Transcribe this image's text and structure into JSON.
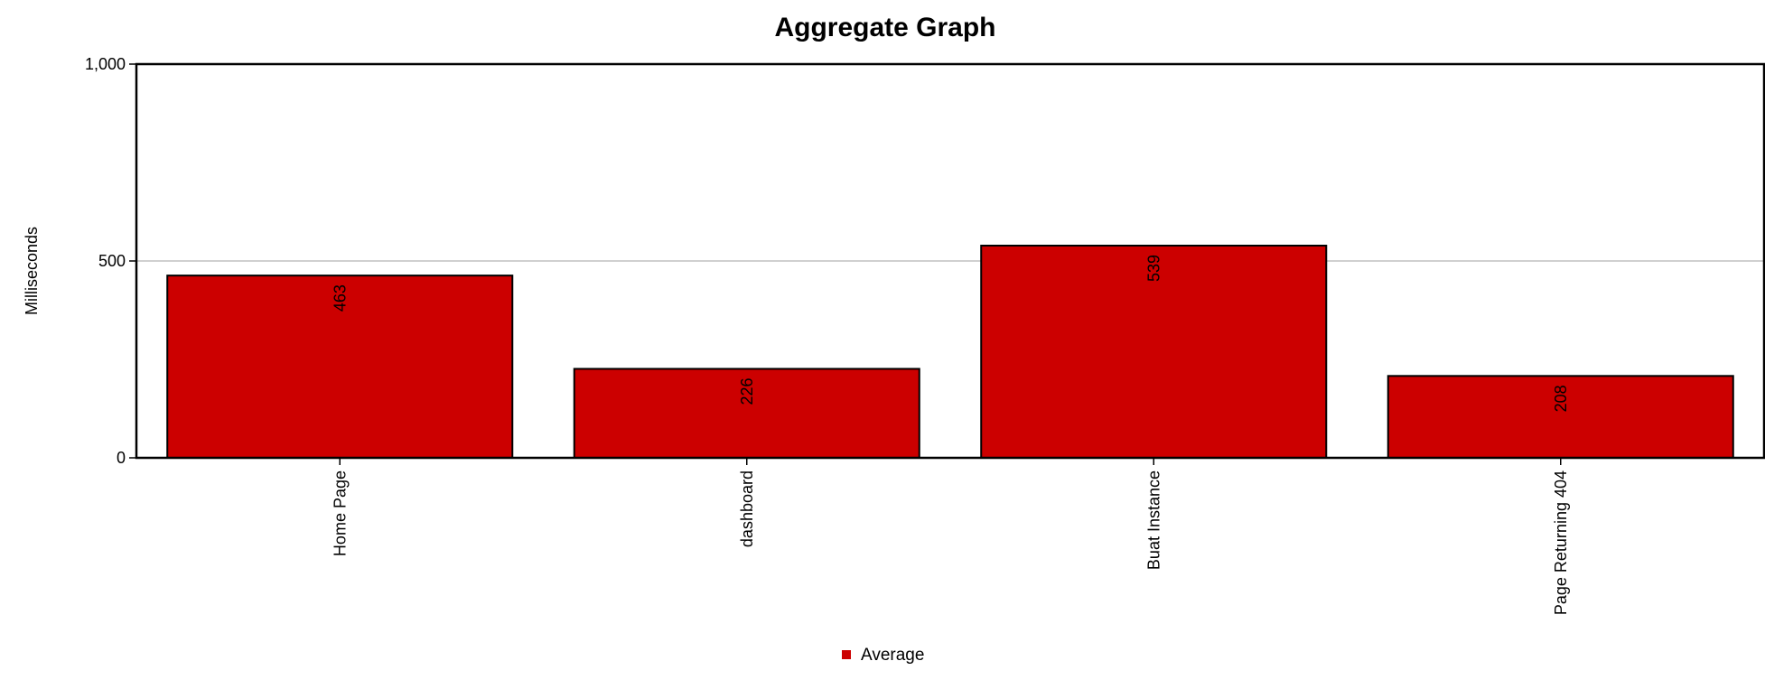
{
  "chart_data": {
    "type": "bar",
    "title": "Aggregate Graph",
    "xlabel": "",
    "ylabel": "Milliseconds",
    "categories": [
      "Home Page",
      "dashboard",
      "Buat Instance",
      "Page Returning 404"
    ],
    "series": [
      {
        "name": "Average",
        "values": [
          463,
          226,
          539,
          208
        ],
        "color": "#cc0000"
      }
    ],
    "ylim": [
      0,
      1000
    ],
    "yticks": [
      0,
      500,
      1000
    ],
    "ytick_labels": [
      "0",
      "500",
      "1,000"
    ],
    "grid": true,
    "legend_position": "bottom"
  }
}
